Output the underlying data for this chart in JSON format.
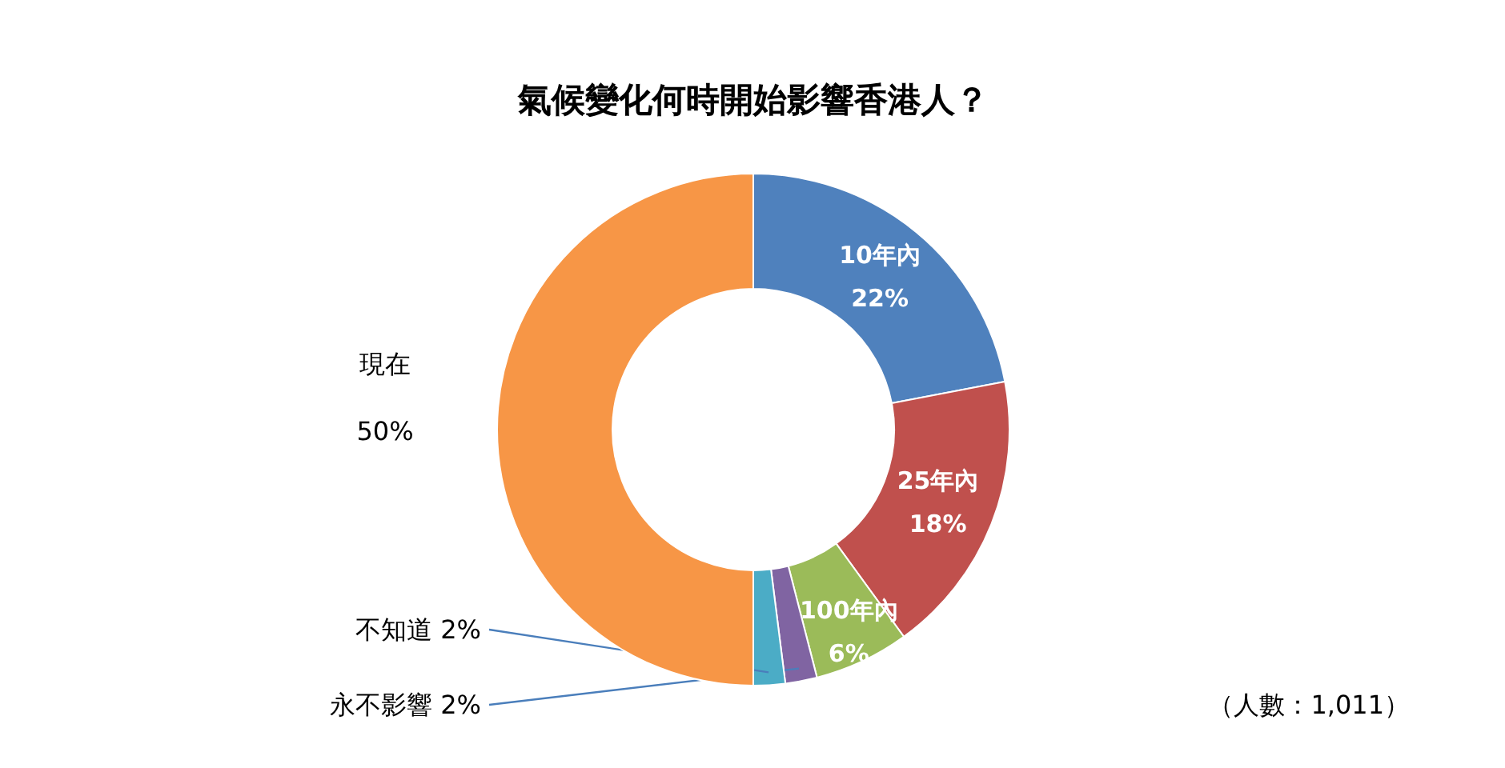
{
  "chart_data": {
    "type": "donut",
    "title": "氣候變化何時開始影響香港人？",
    "categories": [
      "10年內",
      "25年內",
      "100年內",
      "永不影響",
      "不知道",
      "現在"
    ],
    "values": [
      22,
      18,
      6,
      2,
      2,
      50
    ],
    "value_labels": [
      "22%",
      "18%",
      "6%",
      "2%",
      "2%",
      "50%"
    ],
    "colors": [
      "#4f81bd",
      "#c0504d",
      "#9bbb59",
      "#8064a2",
      "#4bacc6",
      "#f79646"
    ],
    "annotations": [
      "（人數：1,011）"
    ]
  }
}
